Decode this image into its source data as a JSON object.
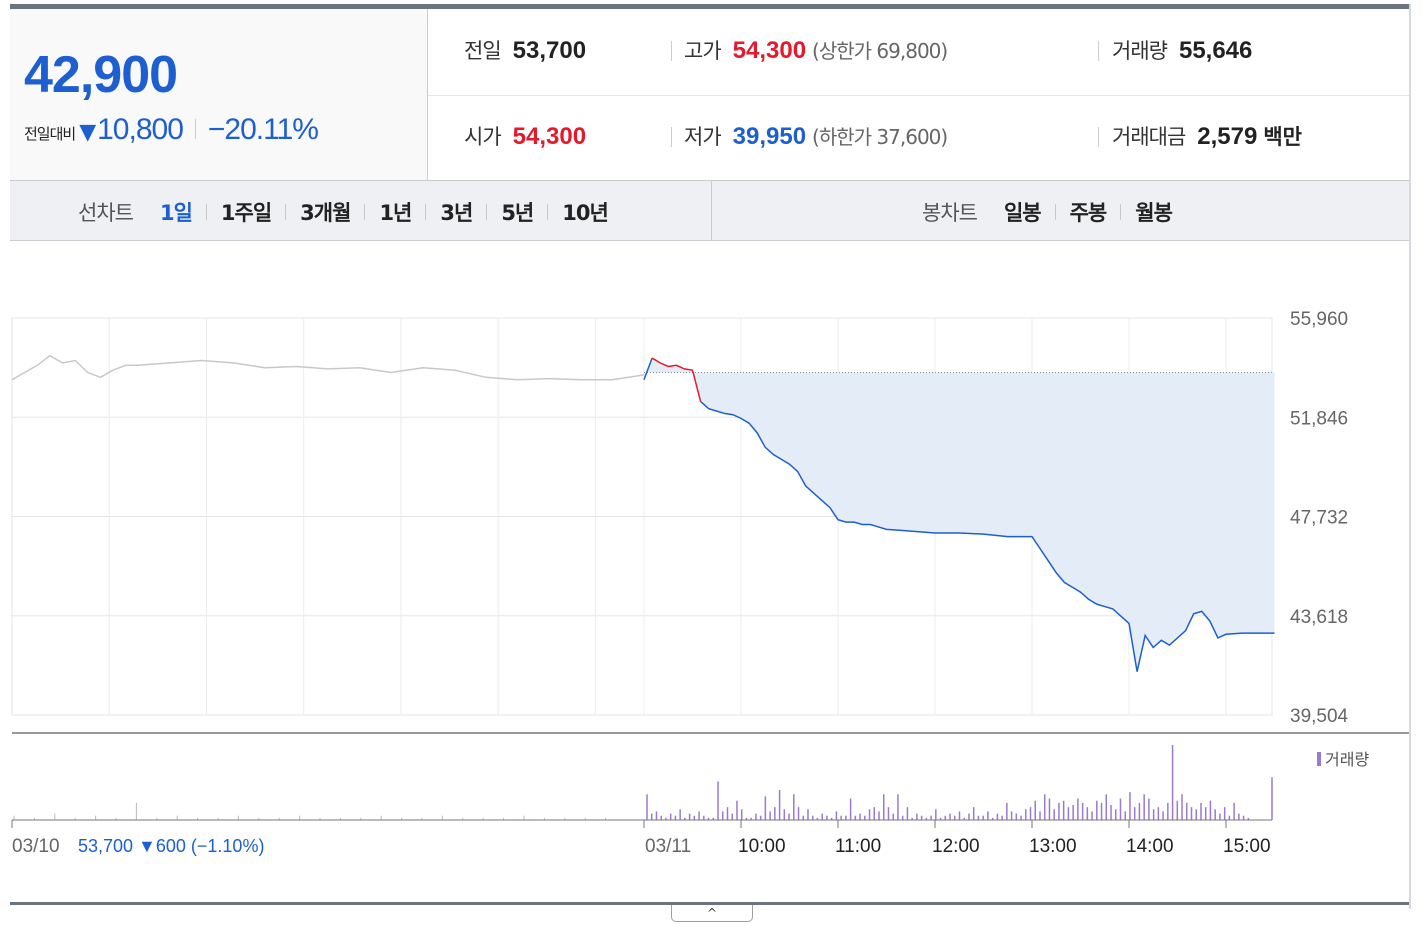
{
  "summary": {
    "current_price": "42,900",
    "change_label": "전일대비",
    "change_icon": "down-triangle-icon",
    "change_value": "10,800",
    "change_pct": "−20.11%",
    "prev_close": {
      "label": "전일",
      "value": "53,700"
    },
    "open": {
      "label": "시가",
      "value": "54,300"
    },
    "high": {
      "label": "고가",
      "value": "54,300",
      "sub": "(상한가 69,800)"
    },
    "low": {
      "label": "저가",
      "value": "39,950",
      "sub": "(하한가 37,600)"
    },
    "volume": {
      "label": "거래량",
      "value": "55,646"
    },
    "amount": {
      "label": "거래대금",
      "value": "2,579",
      "unit": "백만"
    }
  },
  "tabs": {
    "line_head": "선차트",
    "line_tabs": [
      "1일",
      "1주일",
      "3개월",
      "1년",
      "3년",
      "5년",
      "10년"
    ],
    "active_tab": "1일",
    "candle_head": "봉차트",
    "candle_tabs": [
      "일봉",
      "주봉",
      "월봉"
    ]
  },
  "colors": {
    "up": "#e5192b",
    "down": "#1d5fd0",
    "prev_day_line": "#c8c8c8",
    "fill": "#e4ecf8",
    "volume": "#9a7ad0"
  },
  "chart_data": {
    "type": "line",
    "ylim": [
      39504,
      55960
    ],
    "y_ticks": [
      "55,960",
      "51,846",
      "47,732",
      "43,618",
      "39,504"
    ],
    "y_tick_values": [
      55960,
      51846,
      47732,
      43618,
      39504
    ],
    "x_ticks": [
      "10:00",
      "11:00",
      "12:00",
      "13:00",
      "14:00",
      "15:00"
    ],
    "prev_day_label": "03/10",
    "prev_day_summary": {
      "close": "53,700",
      "change": "600",
      "pct": "(−1.10%)"
    },
    "today_label": "03/11",
    "prev_close": 53700,
    "volume_label": "거래량",
    "series": [
      {
        "name": "03/10",
        "time": [
          0,
          0.02,
          0.04,
          0.06,
          0.08,
          0.1,
          0.12,
          0.14,
          0.16,
          0.18,
          0.2,
          0.25,
          0.3,
          0.35,
          0.4,
          0.45,
          0.5,
          0.55,
          0.6,
          0.65,
          0.7,
          0.75,
          0.8,
          0.85,
          0.9,
          0.95,
          1.0
        ],
        "values": [
          53400,
          53700,
          54000,
          54400,
          54100,
          54200,
          53700,
          53500,
          53800,
          54000,
          54000,
          54100,
          54200,
          54100,
          53900,
          53950,
          53850,
          53900,
          53700,
          53900,
          53800,
          53500,
          53400,
          53450,
          53400,
          53400,
          53600
        ]
      },
      {
        "name": "03/11",
        "time": [
          "09:00",
          "09:05",
          "09:10",
          "09:15",
          "09:20",
          "09:25",
          "09:30",
          "09:35",
          "09:40",
          "09:45",
          "09:50",
          "09:55",
          "10:00",
          "10:05",
          "10:10",
          "10:15",
          "10:20",
          "10:25",
          "10:30",
          "10:35",
          "10:40",
          "10:45",
          "10:50",
          "10:55",
          "11:00",
          "11:05",
          "11:10",
          "11:15",
          "11:20",
          "11:25",
          "11:30",
          "11:40",
          "11:50",
          "12:00",
          "12:15",
          "12:30",
          "12:45",
          "13:00",
          "13:05",
          "13:10",
          "13:15",
          "13:20",
          "13:25",
          "13:30",
          "13:35",
          "13:40",
          "13:45",
          "13:50",
          "13:55",
          "14:00",
          "14:05",
          "14:10",
          "14:15",
          "14:20",
          "14:25",
          "14:30",
          "14:35",
          "14:40",
          "14:45",
          "14:50",
          "14:55",
          "15:00",
          "15:10",
          "15:20",
          "15:30"
        ],
        "values": [
          53400,
          54300,
          54100,
          53950,
          54000,
          53850,
          53800,
          52500,
          52200,
          52100,
          52000,
          51950,
          51800,
          51600,
          51200,
          50600,
          50300,
          50100,
          49900,
          49600,
          49000,
          48700,
          48400,
          48100,
          47600,
          47500,
          47500,
          47400,
          47400,
          47300,
          47200,
          47150,
          47100,
          47050,
          47050,
          47000,
          46900,
          46900,
          46400,
          45900,
          45400,
          45000,
          44800,
          44600,
          44300,
          44100,
          44000,
          43900,
          43600,
          43300,
          41300,
          42800,
          42300,
          42600,
          42400,
          42700,
          43000,
          43700,
          43800,
          43400,
          42700,
          42850,
          42900,
          42900,
          42900
        ]
      }
    ],
    "volume": {
      "prev_day_values": [
        2,
        1,
        3,
        1,
        2,
        1,
        8,
        1,
        2,
        1,
        1,
        2,
        1,
        1,
        2,
        1,
        1,
        1,
        2,
        1,
        1,
        2,
        1,
        1,
        1,
        2,
        1,
        1,
        1,
        1
      ],
      "today_values": [
        12,
        3,
        4,
        2,
        1,
        3,
        2,
        5,
        1,
        3,
        2,
        4,
        2,
        1,
        1,
        18,
        4,
        6,
        3,
        9,
        5,
        1,
        1,
        3,
        2,
        11,
        4,
        6,
        14,
        5,
        3,
        12,
        6,
        2,
        5,
        2,
        1,
        3,
        2,
        1,
        4,
        2,
        2,
        10,
        2,
        3,
        2,
        5,
        6,
        4,
        12,
        6,
        3,
        12,
        2,
        6,
        1,
        3,
        2,
        1,
        2,
        5,
        1,
        2,
        3,
        2,
        4,
        1,
        3,
        6,
        2,
        2,
        4,
        1,
        3,
        2,
        8,
        4,
        3,
        2,
        5,
        6,
        9,
        4,
        12,
        10,
        5,
        8,
        9,
        6,
        7,
        10,
        8,
        6,
        4,
        9,
        8,
        12,
        7,
        5,
        10,
        4,
        13,
        6,
        8,
        12,
        10,
        5,
        6,
        4,
        8,
        35,
        9,
        12,
        8,
        6,
        5,
        8,
        6,
        9,
        5,
        3,
        6,
        2,
        8,
        3,
        2,
        1,
        0,
        0,
        0,
        0,
        20
      ]
    }
  }
}
